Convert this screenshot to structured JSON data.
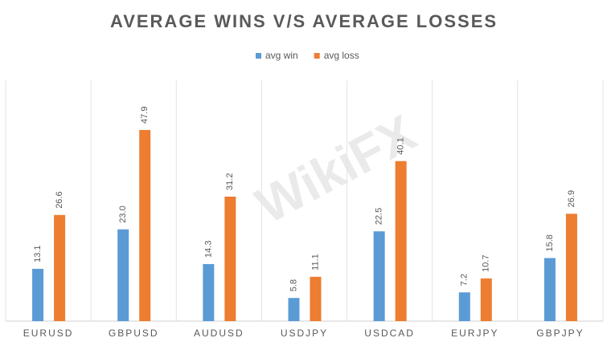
{
  "chart_data": {
    "type": "bar",
    "title": "AVERAGE WINS V/S AVERAGE LOSSES",
    "categories": [
      "EURUSD",
      "GBPUSD",
      "AUDUSD",
      "USDJPY",
      "USDCAD",
      "EURJPY",
      "GBPJPY"
    ],
    "series": [
      {
        "name": "avg win",
        "color": "#5b9bd5",
        "values": [
          13.1,
          23.0,
          14.3,
          5.8,
          22.5,
          7.2,
          15.8
        ],
        "value_labels": [
          "13.1",
          "23.0",
          "14.3",
          "5.8",
          "22.5",
          "7.2",
          "15.8"
        ]
      },
      {
        "name": "avg loss",
        "color": "#ed7d31",
        "values": [
          26.6,
          47.9,
          31.2,
          11.1,
          40.1,
          10.7,
          26.9
        ],
        "value_labels": [
          "26.6",
          "47.9",
          "31.2",
          "11.1",
          "40.1",
          "10.7",
          "26.9"
        ]
      }
    ],
    "legend": "top",
    "watermark": "WikiFX"
  }
}
